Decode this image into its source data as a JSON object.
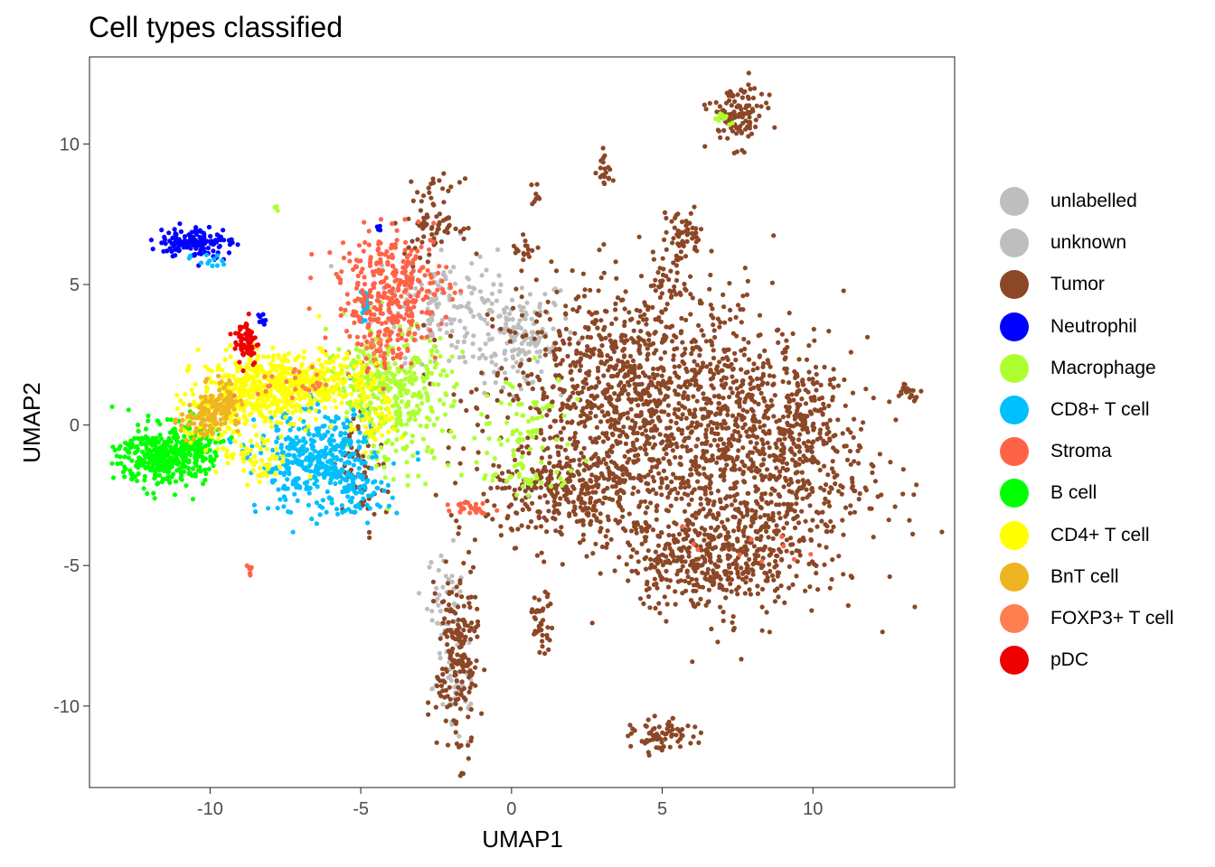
{
  "chart_data": {
    "type": "scatter",
    "title": "Cell types classified",
    "xlabel": "UMAP1",
    "ylabel": "UMAP2",
    "xlim": [
      -14,
      14.7
    ],
    "ylim": [
      -12.9,
      13.1
    ],
    "x_ticks": [
      -10,
      -5,
      0,
      5,
      10
    ],
    "y_ticks": [
      -10,
      -5,
      0,
      5,
      10
    ],
    "x_tick_labels": [
      "-10",
      "-5",
      "0",
      "5",
      "10"
    ],
    "y_tick_labels": [
      "-10",
      "-5",
      "0",
      "5",
      "10"
    ],
    "grid": false,
    "legend_position": "right",
    "series": [
      {
        "name": "unlabelled",
        "color": "#BEBEBE",
        "clusters": [
          {
            "cx": -0.5,
            "cy": 3.5,
            "sx": 1.3,
            "sy": 0.9,
            "n": 140
          },
          {
            "cx": -2.5,
            "cy": 4.5,
            "sx": 1.0,
            "sy": 1.0,
            "n": 100
          },
          {
            "cx": -2.2,
            "cy": -6.2,
            "sx": 0.3,
            "sy": 0.9,
            "n": 40
          }
        ]
      },
      {
        "name": "unknown",
        "color": "#BEBEBE",
        "clusters": [
          {
            "cx": 0.3,
            "cy": 2.6,
            "sx": 0.6,
            "sy": 0.6,
            "n": 60
          },
          {
            "cx": -1.8,
            "cy": -9.3,
            "sx": 0.4,
            "sy": 1.2,
            "n": 40
          }
        ]
      },
      {
        "name": "Tumor",
        "color": "#8B4726",
        "clusters": [
          {
            "cx": 4.0,
            "cy": 1.0,
            "sx": 2.3,
            "sy": 2.0,
            "n": 1100
          },
          {
            "cx": 8.0,
            "cy": -1.5,
            "sx": 1.9,
            "sy": 2.3,
            "n": 900
          },
          {
            "cx": 6.5,
            "cy": -4.8,
            "sx": 1.4,
            "sy": 0.8,
            "n": 350
          },
          {
            "cx": 2.0,
            "cy": -2.5,
            "sx": 1.4,
            "sy": 0.8,
            "n": 300
          },
          {
            "cx": -2.6,
            "cy": 7.3,
            "sx": 0.45,
            "sy": 0.7,
            "n": 80
          },
          {
            "cx": 7.5,
            "cy": 11.0,
            "sx": 0.45,
            "sy": 0.55,
            "n": 120
          },
          {
            "cx": 5.7,
            "cy": 6.7,
            "sx": 0.35,
            "sy": 0.45,
            "n": 60
          },
          {
            "cx": 5.3,
            "cy": 5.0,
            "sx": 0.4,
            "sy": 0.4,
            "n": 40
          },
          {
            "cx": -1.8,
            "cy": -8.3,
            "sx": 0.35,
            "sy": 1.7,
            "n": 200
          },
          {
            "cx": 5.0,
            "cy": -11.1,
            "sx": 0.5,
            "sy": 0.3,
            "n": 70
          },
          {
            "cx": 1.0,
            "cy": -7.0,
            "sx": 0.2,
            "sy": 0.5,
            "n": 40
          },
          {
            "cx": 13.2,
            "cy": 1.2,
            "sx": 0.2,
            "sy": 0.15,
            "n": 20
          },
          {
            "cx": 3.1,
            "cy": 9.2,
            "sx": 0.12,
            "sy": 0.35,
            "n": 20
          },
          {
            "cx": 0.4,
            "cy": 6.2,
            "sx": 0.2,
            "sy": 0.3,
            "n": 15
          },
          {
            "cx": 9.8,
            "cy": 0.5,
            "sx": 0.5,
            "sy": 0.8,
            "n": 80
          },
          {
            "cx": -5.0,
            "cy": -1.5,
            "sx": 0.4,
            "sy": 1.0,
            "n": 60
          },
          {
            "cx": 0.8,
            "cy": 8.2,
            "sx": 0.1,
            "sy": 0.2,
            "n": 8
          }
        ]
      },
      {
        "name": "Neutrophil",
        "color": "#0000FF",
        "clusters": [
          {
            "cx": -10.5,
            "cy": 6.5,
            "sx": 0.6,
            "sy": 0.28,
            "n": 140
          },
          {
            "cx": -8.3,
            "cy": 3.8,
            "sx": 0.1,
            "sy": 0.1,
            "n": 8
          },
          {
            "cx": -4.4,
            "cy": 7.0,
            "sx": 0.06,
            "sy": 0.1,
            "n": 5
          }
        ]
      },
      {
        "name": "Macrophage",
        "color": "#ADFF2F",
        "clusters": [
          {
            "cx": -3.8,
            "cy": 1.0,
            "sx": 0.9,
            "sy": 1.2,
            "n": 320
          },
          {
            "cx": -4.9,
            "cy": 1.7,
            "sx": 0.6,
            "sy": 0.8,
            "n": 100
          },
          {
            "cx": 0.5,
            "cy": 0.2,
            "sx": 0.8,
            "sy": 0.8,
            "n": 60
          },
          {
            "cx": 0.5,
            "cy": -1.8,
            "sx": 0.8,
            "sy": 0.3,
            "n": 40
          },
          {
            "cx": 7.0,
            "cy": 10.9,
            "sx": 0.15,
            "sy": 0.15,
            "n": 10
          },
          {
            "cx": -7.8,
            "cy": 7.7,
            "sx": 0.05,
            "sy": 0.05,
            "n": 3
          }
        ]
      },
      {
        "name": "CD8+ T cell",
        "color": "#00BFFF",
        "clusters": [
          {
            "cx": -6.5,
            "cy": -1.3,
            "sx": 0.95,
            "sy": 0.9,
            "n": 400
          },
          {
            "cx": -5.0,
            "cy": -2.3,
            "sx": 0.5,
            "sy": 0.4,
            "n": 60
          },
          {
            "cx": -4.8,
            "cy": 4.2,
            "sx": 0.15,
            "sy": 0.35,
            "n": 20
          },
          {
            "cx": -10.2,
            "cy": 5.8,
            "sx": 0.3,
            "sy": 0.15,
            "n": 12
          }
        ]
      },
      {
        "name": "Stroma",
        "color": "#FF6347",
        "clusters": [
          {
            "cx": -3.9,
            "cy": 5.0,
            "sx": 0.9,
            "sy": 0.9,
            "n": 300
          },
          {
            "cx": -4.3,
            "cy": 3.0,
            "sx": 0.8,
            "sy": 0.6,
            "n": 80
          },
          {
            "cx": -1.3,
            "cy": -2.9,
            "sx": 0.3,
            "sy": 0.12,
            "n": 25
          },
          {
            "cx": -8.7,
            "cy": -5.1,
            "sx": 0.08,
            "sy": 0.12,
            "n": 8
          },
          {
            "cx": 7.3,
            "cy": -4.5,
            "sx": 1.0,
            "sy": 1.0,
            "n": 10
          }
        ]
      },
      {
        "name": "B cell",
        "color": "#00FF00",
        "clusters": [
          {
            "cx": -11.6,
            "cy": -1.1,
            "sx": 0.7,
            "sy": 0.55,
            "n": 350
          },
          {
            "cx": -10.5,
            "cy": -0.8,
            "sx": 0.4,
            "sy": 0.5,
            "n": 100
          }
        ]
      },
      {
        "name": "CD4+ T cell",
        "color": "#FFFF00",
        "clusters": [
          {
            "cx": -8.3,
            "cy": 1.3,
            "sx": 1.0,
            "sy": 0.6,
            "n": 420
          },
          {
            "cx": -6.2,
            "cy": 1.6,
            "sx": 0.9,
            "sy": 0.45,
            "n": 200
          },
          {
            "cx": -10.0,
            "cy": 0.3,
            "sx": 0.5,
            "sy": 0.5,
            "n": 80
          },
          {
            "cx": -8.5,
            "cy": -1.3,
            "sx": 0.6,
            "sy": 0.4,
            "n": 60
          },
          {
            "cx": -4.5,
            "cy": 0.2,
            "sx": 0.4,
            "sy": 0.6,
            "n": 50
          }
        ]
      },
      {
        "name": "BnT cell",
        "color": "#EEB422",
        "clusters": [
          {
            "cx": -10.2,
            "cy": 0.2,
            "sx": 0.4,
            "sy": 0.4,
            "n": 100
          },
          {
            "cx": -9.5,
            "cy": 0.9,
            "sx": 0.25,
            "sy": 0.4,
            "n": 60
          }
        ]
      },
      {
        "name": "FOXP3+ T cell",
        "color": "#FF7F50",
        "clusters": [
          {
            "cx": -7.2,
            "cy": 1.5,
            "sx": 0.6,
            "sy": 0.3,
            "n": 25
          },
          {
            "cx": -4.5,
            "cy": 2.8,
            "sx": 0.2,
            "sy": 0.2,
            "n": 12
          }
        ]
      },
      {
        "name": "pDC",
        "color": "#EE0000",
        "clusters": [
          {
            "cx": -8.8,
            "cy": 3.0,
            "sx": 0.2,
            "sy": 0.45,
            "n": 70
          }
        ]
      }
    ]
  }
}
